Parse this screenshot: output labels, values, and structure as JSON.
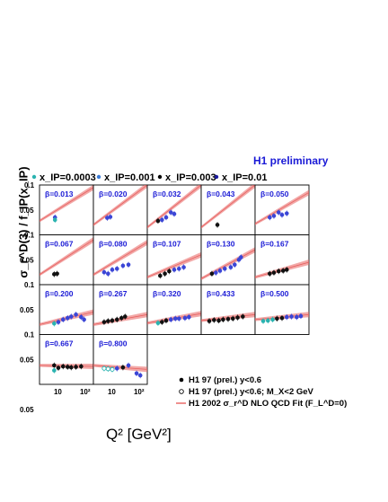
{
  "chart_data": {
    "type": "scatter",
    "title": "H1 preliminary",
    "ylabel": "σ_r^D(3) / f_IP(x_IP)",
    "xlabel": "Q² [GeV²]",
    "x_scale": "log",
    "xlim": [
      2,
      200
    ],
    "ylim": [
      0,
      0.1
    ],
    "ytick_labels": [
      "0.1",
      "0.05"
    ],
    "xtick_labels": [
      "10",
      "10²"
    ],
    "legend_top": [
      {
        "label": "x_IP=0.0003",
        "color": "#2ab3b0"
      },
      {
        "label": "x_IP=0.001",
        "color": "#3b7bd6"
      },
      {
        "label": "x_IP=0.003",
        "color": "#000000"
      },
      {
        "label": "x_IP=0.01",
        "color": "#1a1aa0"
      }
    ],
    "legend_bottom": [
      {
        "label": "H1 97 (prel.) y<0.6",
        "marker": "filled"
      },
      {
        "label": "H1 97 (prel.) y<0.6; M_X<2 GeV",
        "marker": "open"
      },
      {
        "label": "H1 2002 σ_r^D NLO QCD Fit (F_L^D=0)",
        "marker": "line"
      }
    ],
    "fit_color": "#e8605f",
    "panels": [
      {
        "beta": "β=0.013",
        "fit": [
          [
            2,
            0.028
          ],
          [
            200,
            0.095
          ]
        ],
        "points": [
          {
            "x": 7.5,
            "y": 0.035,
            "s": "x001"
          },
          {
            "x": 7.5,
            "y": 0.03,
            "s": "x0003"
          }
        ]
      },
      {
        "beta": "β=0.020",
        "fit": [
          [
            2,
            0.02
          ],
          [
            200,
            0.1
          ]
        ],
        "points": [
          {
            "x": 6.5,
            "y": 0.034,
            "s": "x001"
          },
          {
            "x": 8.5,
            "y": 0.036,
            "s": "x001"
          }
        ]
      },
      {
        "beta": "β=0.032",
        "fit": [
          [
            2,
            0.015
          ],
          [
            200,
            0.1
          ]
        ],
        "points": [
          {
            "x": 5,
            "y": 0.028,
            "s": "x003"
          },
          {
            "x": 7,
            "y": 0.03,
            "s": "x001"
          },
          {
            "x": 10,
            "y": 0.035,
            "s": "x001"
          },
          {
            "x": 15,
            "y": 0.045,
            "s": "x001"
          },
          {
            "x": 20,
            "y": 0.042,
            "s": "x001"
          }
        ]
      },
      {
        "beta": "β=0.043",
        "fit": [
          [
            2,
            0.015
          ],
          [
            200,
            0.1
          ]
        ],
        "points": [
          {
            "x": 8,
            "y": 0.02,
            "s": "x003"
          }
        ]
      },
      {
        "beta": "β=0.050",
        "fit": [
          [
            2,
            0.022
          ],
          [
            200,
            0.085
          ]
        ],
        "points": [
          {
            "x": 7,
            "y": 0.035,
            "s": "x001"
          },
          {
            "x": 10,
            "y": 0.038,
            "s": "x001"
          },
          {
            "x": 15,
            "y": 0.045,
            "s": "x001"
          },
          {
            "x": 20,
            "y": 0.04,
            "s": "x001"
          },
          {
            "x": 30,
            "y": 0.043,
            "s": "x001"
          }
        ]
      },
      {
        "beta": "β=0.067",
        "fit": [
          [
            2,
            0.02
          ],
          [
            200,
            0.09
          ]
        ],
        "points": [
          {
            "x": 7,
            "y": 0.021,
            "s": "x003"
          },
          {
            "x": 9,
            "y": 0.022,
            "s": "x003"
          }
        ]
      },
      {
        "beta": "β=0.080",
        "fit": [
          [
            2,
            0.02
          ],
          [
            200,
            0.085
          ]
        ],
        "points": [
          {
            "x": 5,
            "y": 0.025,
            "s": "x001"
          },
          {
            "x": 7,
            "y": 0.022,
            "s": "x001"
          },
          {
            "x": 10,
            "y": 0.03,
            "s": "x001"
          },
          {
            "x": 15,
            "y": 0.032,
            "s": "x001"
          },
          {
            "x": 25,
            "y": 0.038,
            "s": "x001"
          },
          {
            "x": 40,
            "y": 0.04,
            "s": "x001"
          }
        ]
      },
      {
        "beta": "β=0.107",
        "fit": [
          [
            2,
            0.015
          ],
          [
            200,
            0.06
          ]
        ],
        "points": [
          {
            "x": 6,
            "y": 0.018,
            "s": "x003"
          },
          {
            "x": 9,
            "y": 0.022,
            "s": "x003"
          },
          {
            "x": 13,
            "y": 0.027,
            "s": "x003"
          },
          {
            "x": 20,
            "y": 0.03,
            "s": "x001"
          },
          {
            "x": 30,
            "y": 0.032,
            "s": "x001"
          },
          {
            "x": 45,
            "y": 0.035,
            "s": "x001"
          }
        ]
      },
      {
        "beta": "β=0.130",
        "fit": [
          [
            2,
            0.012
          ],
          [
            200,
            0.07
          ]
        ],
        "points": [
          {
            "x": 5,
            "y": 0.022,
            "s": "x003"
          },
          {
            "x": 7,
            "y": 0.024,
            "s": "x001"
          },
          {
            "x": 10,
            "y": 0.028,
            "s": "x001"
          },
          {
            "x": 15,
            "y": 0.032,
            "s": "x001"
          },
          {
            "x": 25,
            "y": 0.035,
            "s": "x001"
          },
          {
            "x": 35,
            "y": 0.04,
            "s": "x001"
          },
          {
            "x": 50,
            "y": 0.05,
            "s": "x001"
          },
          {
            "x": 60,
            "y": 0.055,
            "s": "x001"
          }
        ]
      },
      {
        "beta": "β=0.167",
        "fit": [
          [
            2,
            0.015
          ],
          [
            200,
            0.045
          ]
        ],
        "points": [
          {
            "x": 7,
            "y": 0.022,
            "s": "x003"
          },
          {
            "x": 10,
            "y": 0.024,
            "s": "x003"
          },
          {
            "x": 15,
            "y": 0.027,
            "s": "x003"
          },
          {
            "x": 22,
            "y": 0.028,
            "s": "x003"
          },
          {
            "x": 30,
            "y": 0.03,
            "s": "x003"
          }
        ]
      },
      {
        "beta": "β=0.200",
        "fit": [
          [
            2,
            0.02
          ],
          [
            200,
            0.045
          ]
        ],
        "points": [
          {
            "x": 7,
            "y": 0.022,
            "s": "x0003"
          },
          {
            "x": 10,
            "y": 0.025,
            "s": "x001"
          },
          {
            "x": 15,
            "y": 0.03,
            "s": "x001"
          },
          {
            "x": 22,
            "y": 0.033,
            "s": "x001"
          },
          {
            "x": 30,
            "y": 0.036,
            "s": "x001"
          },
          {
            "x": 45,
            "y": 0.04,
            "s": "x001"
          },
          {
            "x": 70,
            "y": 0.035,
            "s": "x001"
          },
          {
            "x": 90,
            "y": 0.03,
            "s": "x001"
          }
        ]
      },
      {
        "beta": "β=0.267",
        "fit": [
          [
            2,
            0.02
          ],
          [
            200,
            0.04
          ]
        ],
        "points": [
          {
            "x": 5,
            "y": 0.025,
            "s": "x003"
          },
          {
            "x": 7,
            "y": 0.027,
            "s": "x003"
          },
          {
            "x": 10,
            "y": 0.028,
            "s": "x003"
          },
          {
            "x": 15,
            "y": 0.03,
            "s": "x003"
          },
          {
            "x": 22,
            "y": 0.033,
            "s": "x003"
          },
          {
            "x": 30,
            "y": 0.036,
            "s": "x003"
          }
        ]
      },
      {
        "beta": "β=0.320",
        "fit": [
          [
            2,
            0.023
          ],
          [
            200,
            0.042
          ]
        ],
        "points": [
          {
            "x": 5,
            "y": 0.023,
            "s": "x0003"
          },
          {
            "x": 7,
            "y": 0.025,
            "s": "x003"
          },
          {
            "x": 10,
            "y": 0.028,
            "s": "x003"
          },
          {
            "x": 15,
            "y": 0.03,
            "s": "x001"
          },
          {
            "x": 22,
            "y": 0.032,
            "s": "x001"
          },
          {
            "x": 30,
            "y": 0.032,
            "s": "x001"
          },
          {
            "x": 50,
            "y": 0.033,
            "s": "x001"
          },
          {
            "x": 70,
            "y": 0.035,
            "s": "x001"
          }
        ]
      },
      {
        "beta": "β=0.433",
        "fit": [
          [
            2,
            0.028
          ],
          [
            200,
            0.04
          ]
        ],
        "points": [
          {
            "x": 4,
            "y": 0.027,
            "s": "x003"
          },
          {
            "x": 6,
            "y": 0.029,
            "s": "x003"
          },
          {
            "x": 9,
            "y": 0.028,
            "s": "x003"
          },
          {
            "x": 13,
            "y": 0.03,
            "s": "x003"
          },
          {
            "x": 20,
            "y": 0.031,
            "s": "x003"
          },
          {
            "x": 30,
            "y": 0.032,
            "s": "x003"
          },
          {
            "x": 45,
            "y": 0.034,
            "s": "x003"
          },
          {
            "x": 70,
            "y": 0.036,
            "s": "x003"
          }
        ]
      },
      {
        "beta": "β=0.500",
        "fit": [
          [
            2,
            0.03
          ],
          [
            200,
            0.04
          ]
        ],
        "points": [
          {
            "x": 4,
            "y": 0.027,
            "s": "x0003"
          },
          {
            "x": 6,
            "y": 0.028,
            "s": "x0003"
          },
          {
            "x": 9,
            "y": 0.03,
            "s": "x0003"
          },
          {
            "x": 13,
            "y": 0.032,
            "s": "x003"
          },
          {
            "x": 20,
            "y": 0.033,
            "s": "x003"
          },
          {
            "x": 30,
            "y": 0.035,
            "s": "x001"
          },
          {
            "x": 45,
            "y": 0.036,
            "s": "x001"
          },
          {
            "x": 70,
            "y": 0.035,
            "s": "x001"
          },
          {
            "x": 100,
            "y": 0.037,
            "s": "x001"
          }
        ]
      },
      {
        "beta": "β=0.667",
        "fit": [
          [
            2,
            0.038
          ],
          [
            200,
            0.036
          ]
        ],
        "points": [
          {
            "x": 7,
            "y": 0.038,
            "s": "x003"
          },
          {
            "x": 7,
            "y": 0.028,
            "s": "x0003"
          },
          {
            "x": 10,
            "y": 0.033,
            "s": "x003"
          },
          {
            "x": 15,
            "y": 0.036,
            "s": "x003"
          },
          {
            "x": 22,
            "y": 0.035,
            "s": "x003"
          },
          {
            "x": 30,
            "y": 0.034,
            "s": "x003"
          },
          {
            "x": 45,
            "y": 0.035,
            "s": "x003"
          },
          {
            "x": 70,
            "y": 0.036,
            "s": "x003"
          }
        ]
      },
      {
        "beta": "β=0.800",
        "fit": [
          [
            2,
            0.038
          ],
          [
            200,
            0.03
          ]
        ],
        "points": [
          {
            "x": 5,
            "y": 0.032,
            "s": "x0003open"
          },
          {
            "x": 7,
            "y": 0.031,
            "s": "x0003open"
          },
          {
            "x": 10,
            "y": 0.03,
            "s": "x0003open"
          },
          {
            "x": 15,
            "y": 0.032,
            "s": "x001"
          },
          {
            "x": 25,
            "y": 0.034,
            "s": "x003"
          },
          {
            "x": 40,
            "y": 0.038,
            "s": "x001"
          },
          {
            "x": 80,
            "y": 0.022,
            "s": "x001"
          },
          {
            "x": 110,
            "y": 0.018,
            "s": "x001"
          }
        ]
      }
    ]
  }
}
